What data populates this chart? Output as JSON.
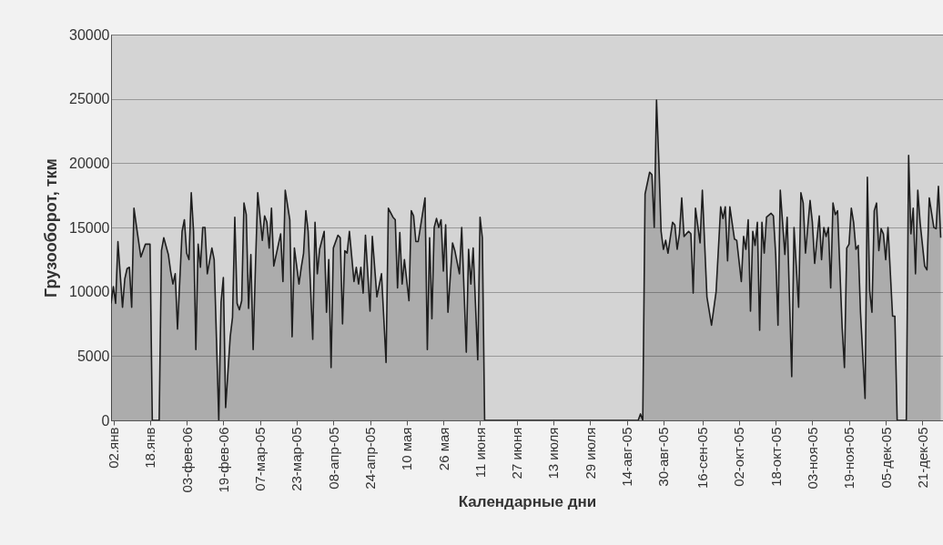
{
  "chart_data": {
    "type": "area",
    "xlabel": "Календарные дни",
    "ylabel": "Грузооборот, ткм",
    "x": [
      "--01-01",
      "--01-02",
      "--01-03",
      "--01-04",
      "--01-06",
      "--01-07",
      "--01-08",
      "--01-09",
      "--01-10",
      "--01-11",
      "--01-12",
      "--01-14",
      "--01-16",
      "--01-18",
      "--01-19",
      "--01-22",
      "--01-23",
      "--01-24",
      "--01-26",
      "--01-27",
      "--01-28",
      "--01-29",
      "--01-30",
      "--02-01",
      "--02-02",
      "--02-03",
      "--02-04",
      "--02-05",
      "--02-06",
      "--02-07",
      "--02-08",
      "--02-09",
      "--02-10",
      "--02-11",
      "--02-12",
      "--02-14",
      "--02-15",
      "--02-17",
      "--02-18",
      "--02-19",
      "--02-20",
      "--02-22",
      "--02-23",
      "--02-24",
      "--02-25",
      "--02-26",
      "--02-27",
      "--02-28",
      "--03-01",
      "--03-02",
      "--03-03",
      "--03-04",
      "--03-05",
      "--03-06",
      "--03-08",
      "--03-09",
      "--03-10",
      "--03-11",
      "--03-12",
      "--03-13",
      "--03-16",
      "--03-17",
      "--03-18",
      "--03-20",
      "--03-21",
      "--03-22",
      "--03-24",
      "--03-25",
      "--03-26",
      "--03-27",
      "--03-28",
      "--03-30",
      "--03-31",
      "--04-01",
      "--04-02",
      "--04-04",
      "--04-05",
      "--04-06",
      "--04-07",
      "--04-08",
      "--04-10",
      "--04-11",
      "--04-12",
      "--04-13",
      "--04-14",
      "--04-15",
      "--04-17",
      "--04-18",
      "--04-19",
      "--04-20",
      "--04-21",
      "--04-22",
      "--04-24",
      "--04-25",
      "--04-27",
      "--04-29",
      "--05-01",
      "--05-02",
      "--05-04",
      "--05-05",
      "--05-06",
      "--05-07",
      "--05-08",
      "--05-09",
      "--05-11",
      "--05-12",
      "--05-13",
      "--05-14",
      "--05-15",
      "--05-18",
      "--05-19",
      "--05-20",
      "--05-21",
      "--05-22",
      "--05-23",
      "--05-24",
      "--05-25",
      "--05-26",
      "--05-27",
      "--05-28",
      "--05-30",
      "--05-31",
      "--06-02",
      "--06-03",
      "--06-05",
      "--06-06",
      "--06-07",
      "--06-08",
      "--06-10",
      "--06-11",
      "--06-12",
      "--06-13",
      "--08-19",
      "--08-20",
      "--08-21",
      "--08-22",
      "--08-24",
      "--08-25",
      "--08-26",
      "--08-27",
      "--08-28",
      "--08-29",
      "--08-30",
      "--08-31",
      "--09-01",
      "--09-03",
      "--09-04",
      "--09-05",
      "--09-06",
      "--09-07",
      "--09-08",
      "--09-10",
      "--09-11",
      "--09-12",
      "--09-13",
      "--09-15",
      "--09-16",
      "--09-18",
      "--09-20",
      "--09-22",
      "--09-24",
      "--09-25",
      "--09-26",
      "--09-27",
      "--09-28",
      "--09-30",
      "--10-01",
      "--10-03",
      "--10-04",
      "--10-05",
      "--10-06",
      "--10-07",
      "--10-08",
      "--10-09",
      "--10-10",
      "--10-11",
      "--10-12",
      "--10-13",
      "--10-14",
      "--10-16",
      "--10-17",
      "--10-18",
      "--10-19",
      "--10-20",
      "--10-22",
      "--10-23",
      "--10-25",
      "--10-26",
      "--10-27",
      "--10-28",
      "--10-29",
      "--10-30",
      "--10-31",
      "--11-02",
      "--11-03",
      "--11-04",
      "--11-06",
      "--11-07",
      "--11-08",
      "--11-09",
      "--11-10",
      "--11-11",
      "--11-12",
      "--11-13",
      "--11-14",
      "--11-16",
      "--11-17",
      "--11-18",
      "--11-19",
      "--11-20",
      "--11-21",
      "--11-22",
      "--11-23",
      "--11-24",
      "--11-26",
      "--11-27",
      "--11-28",
      "--11-29",
      "--11-30",
      "--12-01",
      "--12-02",
      "--12-03",
      "--12-04",
      "--12-05",
      "--12-06",
      "--12-08",
      "--12-09",
      "--12-10",
      "--12-14",
      "--12-15",
      "--12-16",
      "--12-17",
      "--12-18",
      "--12-19",
      "--12-20",
      "--12-22",
      "--12-23",
      "--12-24",
      "--12-26",
      "--12-27",
      "--12-28",
      "--12-29"
    ],
    "series": [
      {
        "color": "#1e1e1e",
        "values": [
          9100,
          10400,
          9100,
          13900,
          8800,
          11000,
          11800,
          11900,
          8800,
          16500,
          15200,
          12700,
          13700,
          13700,
          0,
          0,
          13200,
          14200,
          12900,
          11600,
          10600,
          11400,
          7100,
          14700,
          15600,
          13000,
          12500,
          17700,
          14700,
          5500,
          13700,
          11900,
          15000,
          15000,
          11400,
          13400,
          12500,
          0,
          9200,
          11100,
          1000,
          6500,
          8000,
          15800,
          9100,
          8600,
          9300,
          16900,
          16000,
          8700,
          12900,
          5500,
          11900,
          17700,
          14000,
          15900,
          15400,
          13400,
          16500,
          12000,
          14500,
          10800,
          17900,
          15600,
          6500,
          13400,
          10600,
          11900,
          13000,
          16300,
          14700,
          6300,
          15400,
          11400,
          13300,
          14700,
          8400,
          12500,
          4100,
          13400,
          14400,
          14200,
          7500,
          13200,
          13000,
          14700,
          10800,
          11900,
          10600,
          11900,
          9900,
          14400,
          8500,
          14300,
          9600,
          11400,
          4500,
          16500,
          15800,
          15600,
          10300,
          14600,
          10600,
          12500,
          9300,
          16300,
          15900,
          13900,
          13900,
          17300,
          5500,
          14200,
          7900,
          15000,
          15700,
          15000,
          15600,
          11600,
          15200,
          8400,
          13800,
          13200,
          11400,
          15000,
          5300,
          13300,
          10600,
          13400,
          4700,
          15800,
          14200,
          0,
          0,
          500,
          0,
          17600,
          19300,
          19100,
          15000,
          24900,
          20200,
          14700,
          13300,
          14000,
          13000,
          15400,
          15200,
          13300,
          14500,
          17300,
          14300,
          14700,
          14500,
          9900,
          16500,
          13800,
          17900,
          9600,
          7400,
          10000,
          16600,
          15700,
          16600,
          12400,
          16600,
          14100,
          14000,
          10800,
          14300,
          13300,
          15600,
          8500,
          14700,
          13600,
          15400,
          7000,
          15400,
          13000,
          15800,
          16100,
          15900,
          12900,
          7400,
          17900,
          12900,
          15800,
          3400,
          15000,
          11900,
          8800,
          17700,
          16900,
          13000,
          17100,
          15400,
          12200,
          15900,
          12500,
          15000,
          14300,
          15000,
          10300,
          16900,
          16000,
          16300,
          7200,
          4100,
          13400,
          13700,
          16500,
          15400,
          13300,
          13600,
          8400,
          1700,
          18900,
          10100,
          8400,
          16300,
          16900,
          13200,
          14900,
          14500,
          12500,
          15000,
          8100,
          8100,
          0,
          0,
          20600,
          14500,
          16500,
          11400,
          17900,
          15400,
          12000,
          11700,
          17300,
          15000,
          14900,
          18200,
          14200
        ]
      }
    ],
    "xlim": [
      "--01-01",
      "--12-30"
    ],
    "xticks": [
      {
        "value": "--01-02",
        "label": "02.янв"
      },
      {
        "value": "--01-18",
        "label": "18.янв"
      },
      {
        "value": "--02-03",
        "label": "03-фев-06"
      },
      {
        "value": "--02-19",
        "label": "19-фев-06"
      },
      {
        "value": "--03-07",
        "label": "07-мар-05"
      },
      {
        "value": "--03-23",
        "label": "23-мар-05"
      },
      {
        "value": "--04-08",
        "label": "08-апр-05"
      },
      {
        "value": "--04-24",
        "label": "24-апр-05"
      },
      {
        "value": "--05-10",
        "label": "10 мая"
      },
      {
        "value": "--05-26",
        "label": "26 мая"
      },
      {
        "value": "--06-11",
        "label": "11 июня"
      },
      {
        "value": "--06-27",
        "label": "27 июня"
      },
      {
        "value": "--07-13",
        "label": "13 июля"
      },
      {
        "value": "--07-29",
        "label": "29 июля"
      },
      {
        "value": "--08-14",
        "label": "14-авг-05"
      },
      {
        "value": "--08-30",
        "label": "30-авг-05"
      },
      {
        "value": "--09-16",
        "label": "16-сен-05"
      },
      {
        "value": "--10-02",
        "label": "02-окт-05"
      },
      {
        "value": "--10-18",
        "label": "18-окт-05"
      },
      {
        "value": "--11-03",
        "label": "03-ноя-05"
      },
      {
        "value": "--11-19",
        "label": "19-ноя-05"
      },
      {
        "value": "--12-05",
        "label": "05-дек-05"
      },
      {
        "value": "--12-21",
        "label": "21-дек-05"
      }
    ],
    "ylim": [
      0,
      30000
    ],
    "yticks": [
      0,
      5000,
      10000,
      15000,
      20000,
      25000,
      30000
    ],
    "grid": "y"
  }
}
